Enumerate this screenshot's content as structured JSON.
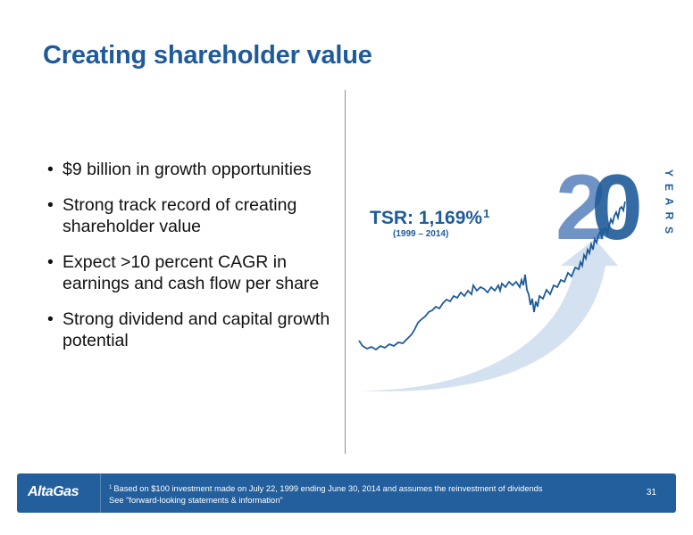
{
  "slide": {
    "title": "Creating shareholder value",
    "bullets": [
      "$9 billion in growth opportunities",
      "Strong track record of creating shareholder value",
      "Expect >10 percent CAGR in earnings and cash flow per share",
      "Strong dividend and capital growth potential"
    ]
  },
  "graphic": {
    "tsr_label": "TSR: 1,169%",
    "tsr_footnote_marker": "1",
    "tsr_period": "(1999 – 2014)",
    "big_number": "20",
    "years_label": "YEARS",
    "colors": {
      "dark_blue": "#1f5b99",
      "mid_blue": "#6f93c4",
      "light_blue": "#d4e1f0"
    }
  },
  "footer": {
    "logo_text": "AltaGas",
    "footnote_marker": "1",
    "footnote_line1": "Based on $100 investment  made on July 22, 1999 ending June 30, 2014 and assumes the reinvestment of dividends",
    "footnote_line2": "See \"forward-looking statements & information\"",
    "page_number": "31"
  }
}
